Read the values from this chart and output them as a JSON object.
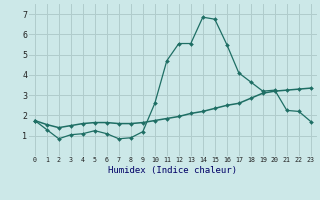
{
  "x": [
    0,
    1,
    2,
    3,
    4,
    5,
    6,
    7,
    8,
    9,
    10,
    11,
    12,
    13,
    14,
    15,
    16,
    17,
    18,
    19,
    20,
    21,
    22,
    23
  ],
  "line1": [
    1.75,
    1.3,
    0.85,
    1.05,
    1.1,
    1.25,
    1.1,
    0.85,
    0.9,
    1.2,
    2.6,
    4.7,
    5.55,
    5.55,
    6.85,
    6.75,
    5.5,
    4.1,
    3.65,
    3.2,
    3.25,
    2.25,
    2.2,
    1.7
  ],
  "line2": [
    1.75,
    1.55,
    1.4,
    1.5,
    1.6,
    1.65,
    1.65,
    1.6,
    1.6,
    1.65,
    1.75,
    1.85,
    1.95,
    2.1,
    2.2,
    2.35,
    2.5,
    2.6,
    2.85,
    3.1,
    3.2,
    3.25,
    3.3,
    3.35
  ],
  "bg_color": "#cce8e8",
  "grid_color": "#b0cccc",
  "line_color": "#1e6e64",
  "xlabel": "Humidex (Indice chaleur)",
  "ylim": [
    0,
    7.5
  ],
  "xlim": [
    -0.5,
    23.5
  ],
  "yticks": [
    1,
    2,
    3,
    4,
    5,
    6,
    7
  ],
  "xticks": [
    0,
    1,
    2,
    3,
    4,
    5,
    6,
    7,
    8,
    9,
    10,
    11,
    12,
    13,
    14,
    15,
    16,
    17,
    18,
    19,
    20,
    21,
    22,
    23
  ],
  "xlabel_color": "#000066",
  "tick_color": "#222222"
}
